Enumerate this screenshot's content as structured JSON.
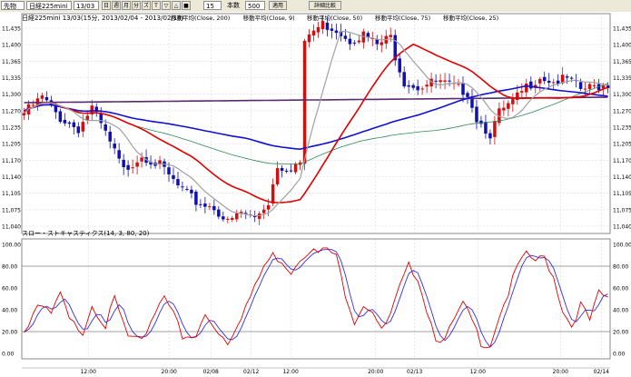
{
  "toolbar": {
    "market": "先物",
    "instrument": "日経225mini",
    "contract": "13/03",
    "interval_value": "15",
    "bars_value": "500",
    "apply_label": "適用",
    "search_label": "詳細比較",
    "mode_a": "日",
    "mode_b": "週",
    "mode_c": "月",
    "mode_d": "分",
    "chk_a": "ズ",
    "chk_b": "T",
    "chk_c": "▽",
    "chk_d": "△",
    "chk_e": "■",
    "range_label": "本数"
  },
  "chart_data": [
    {
      "type": "candlestick",
      "title": "日経225mini 13/03(15分, 2013/02/04 - 2013/02/14)",
      "legend": [
        {
          "label": "移動平均(Close, 200)",
          "color": "#5b2a6e"
        },
        {
          "label": "移動平均(Close, 9)",
          "color": "#a0a0a0"
        },
        {
          "label": "移動平均(Close, 50)",
          "color": "#1010d0"
        },
        {
          "label": "移動平均(Close, 75)",
          "color": "#2e8b57"
        },
        {
          "label": "移動平均(Close, 25)",
          "color": "#e00000"
        }
      ],
      "y_ticks": [
        "11,435",
        "11,400",
        "11,365",
        "11,335",
        "11,300",
        "11,270",
        "11,235",
        "11,205",
        "11,170",
        "11,140",
        "11,105",
        "11,075",
        "11,040"
      ],
      "ylim": [
        11040,
        11460
      ],
      "x_ticks": [
        "12:00",
        "20:00",
        "02/08",
        "02/12",
        "12:00",
        "20:00",
        "02/13",
        "12:00",
        "20:00",
        "02/14"
      ],
      "x_tick_pos": [
        0.14,
        0.31,
        0.398,
        0.483,
        0.566,
        0.745,
        0.827,
        0.96,
        1.134,
        1.22
      ],
      "n_bars": 130,
      "ma200_color": "#5b2a6e",
      "ma9_color": "#a0a0a0",
      "ma50_color": "#1010d0",
      "ma75_color": "#2e8b57",
      "ma25_color": "#e00000",
      "up_color": "#d01010",
      "down_color": "#1010b0",
      "close_keypoints": [
        [
          0,
          11270
        ],
        [
          4,
          11300
        ],
        [
          8,
          11260
        ],
        [
          12,
          11240
        ],
        [
          15,
          11280
        ],
        [
          18,
          11230
        ],
        [
          22,
          11160
        ],
        [
          26,
          11190
        ],
        [
          30,
          11170
        ],
        [
          34,
          11130
        ],
        [
          38,
          11100
        ],
        [
          42,
          11090
        ],
        [
          45,
          11060
        ],
        [
          48,
          11080
        ],
        [
          51,
          11070
        ],
        [
          54,
          11100
        ],
        [
          56,
          11170
        ],
        [
          58,
          11165
        ],
        [
          61,
          11175
        ],
        [
          62,
          11400
        ],
        [
          63,
          11420
        ],
        [
          66,
          11440
        ],
        [
          69,
          11430
        ],
        [
          72,
          11410
        ],
        [
          75,
          11420
        ],
        [
          78,
          11400
        ],
        [
          81,
          11415
        ],
        [
          82,
          11380
        ],
        [
          84,
          11330
        ],
        [
          87,
          11320
        ],
        [
          91,
          11330
        ],
        [
          95,
          11320
        ],
        [
          98,
          11310
        ],
        [
          100,
          11260
        ],
        [
          103,
          11230
        ],
        [
          105,
          11270
        ],
        [
          108,
          11290
        ],
        [
          111,
          11320
        ],
        [
          114,
          11340
        ],
        [
          117,
          11330
        ],
        [
          120,
          11335
        ],
        [
          123,
          11315
        ],
        [
          126,
          11320
        ],
        [
          129,
          11325
        ]
      ]
    },
    {
      "type": "line",
      "title": "スロー・ストキャスティクス(14, 3, 80, 20)",
      "y_ticks": [
        "100.00",
        "80.00",
        "60.00",
        "40.00",
        "20.00",
        "0.00"
      ],
      "ylim": [
        0,
        100
      ],
      "levels": [
        80,
        20
      ],
      "k_color": "#e00000",
      "d_color": "#3030e0",
      "keypoints": [
        [
          0,
          20
        ],
        [
          3,
          45
        ],
        [
          6,
          35
        ],
        [
          8,
          55
        ],
        [
          10,
          30
        ],
        [
          13,
          20
        ],
        [
          15,
          45
        ],
        [
          18,
          25
        ],
        [
          20,
          50
        ],
        [
          23,
          15
        ],
        [
          26,
          10
        ],
        [
          28,
          30
        ],
        [
          31,
          55
        ],
        [
          33,
          40
        ],
        [
          35,
          12
        ],
        [
          38,
          15
        ],
        [
          40,
          35
        ],
        [
          43,
          20
        ],
        [
          45,
          10
        ],
        [
          48,
          35
        ],
        [
          51,
          60
        ],
        [
          53,
          80
        ],
        [
          55,
          90
        ],
        [
          57,
          85
        ],
        [
          59,
          75
        ],
        [
          61,
          88
        ],
        [
          63,
          95
        ],
        [
          65,
          92
        ],
        [
          67,
          96
        ],
        [
          69,
          88
        ],
        [
          71,
          55
        ],
        [
          73,
          30
        ],
        [
          75,
          45
        ],
        [
          77,
          40
        ],
        [
          79,
          20
        ],
        [
          81,
          35
        ],
        [
          83,
          60
        ],
        [
          85,
          80
        ],
        [
          87,
          70
        ],
        [
          89,
          40
        ],
        [
          91,
          15
        ],
        [
          93,
          12
        ],
        [
          95,
          30
        ],
        [
          97,
          45
        ],
        [
          99,
          30
        ],
        [
          101,
          10
        ],
        [
          103,
          8
        ],
        [
          105,
          35
        ],
        [
          107,
          55
        ],
        [
          109,
          80
        ],
        [
          111,
          90
        ],
        [
          113,
          85
        ],
        [
          115,
          88
        ],
        [
          117,
          70
        ],
        [
          119,
          40
        ],
        [
          121,
          25
        ],
        [
          123,
          45
        ],
        [
          125,
          30
        ],
        [
          127,
          55
        ],
        [
          129,
          50
        ]
      ]
    }
  ]
}
